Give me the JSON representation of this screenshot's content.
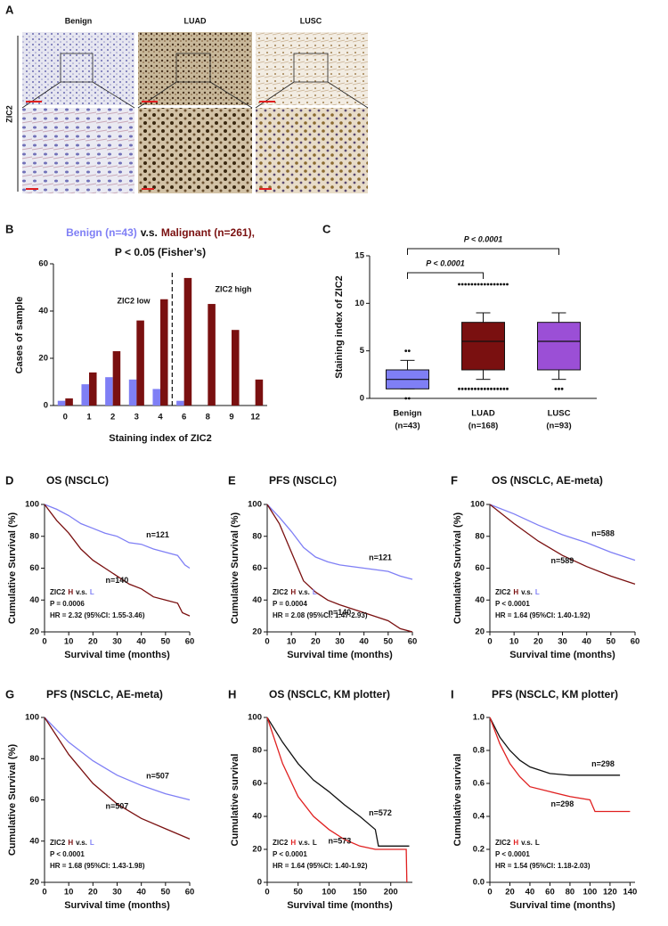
{
  "panel_a": {
    "label": "A",
    "columns": [
      "Benign",
      "LUAD",
      "LUSC"
    ],
    "row_label": "ZIC2"
  },
  "chart_data": [
    {
      "panel": "B",
      "type": "bar",
      "title_parts": [
        "Benign (n=43)",
        "v.s.",
        "Malignant (n=261),"
      ],
      "subtitle": "P < 0.05 (Fisher’s)",
      "categories": [
        "0",
        "1",
        "2",
        "3",
        "4",
        "6",
        "8",
        "9",
        "12"
      ],
      "series": [
        {
          "name": "Benign",
          "color": "#7f7ff5",
          "values": [
            2,
            9,
            12,
            11,
            7,
            2,
            0,
            0,
            0
          ]
        },
        {
          "name": "Malignant",
          "color": "#7a1010",
          "values": [
            3,
            14,
            23,
            36,
            45,
            54,
            43,
            32,
            11
          ]
        }
      ],
      "ylim": [
        0,
        60
      ],
      "yticks": [
        0,
        20,
        40,
        60
      ],
      "xlabel": "Staining index of ZIC2",
      "ylabel": "Cases of sample",
      "annotations": [
        "ZIC2 low",
        "ZIC2 high"
      ]
    },
    {
      "panel": "C",
      "type": "box",
      "categories": [
        "Benign",
        "LUAD",
        "LUSC"
      ],
      "category_counts": [
        "(n=43)",
        "(n=168)",
        "(n=93)"
      ],
      "boxes": [
        {
          "color": "#7f7ff5",
          "whisker_low": 1,
          "q1": 1,
          "median": 2,
          "q3": 3,
          "whisker_high": 4,
          "outliers": [
            0,
            0,
            5,
            5
          ]
        },
        {
          "color": "#7a1010",
          "whisker_low": 2,
          "q1": 3,
          "median": 6,
          "q3": 8,
          "whisker_high": 9,
          "outliers": [
            1,
            1,
            1,
            1,
            1,
            1,
            1,
            1,
            1,
            1,
            1,
            1,
            1,
            1,
            1,
            1,
            12,
            12,
            12,
            12,
            12,
            12,
            12,
            12,
            12,
            12,
            12,
            12,
            12,
            12,
            12,
            12
          ]
        },
        {
          "color": "#9b4fd6",
          "whisker_low": 2,
          "q1": 3,
          "median": 6,
          "q3": 8,
          "whisker_high": 9,
          "outliers": [
            1,
            1,
            1
          ]
        }
      ],
      "ylim": [
        0,
        15
      ],
      "yticks": [
        0,
        5,
        10,
        15
      ],
      "ylabel": "Staining index of ZIC2",
      "annotations": [
        "P < 0.0001",
        "P < 0.0001"
      ]
    },
    {
      "panel": "D",
      "type": "survival",
      "title": "OS (NSCLC)",
      "xlabel": "Survival time (months)",
      "ylabel": "Cumulative Survival (%)",
      "xlim": [
        0,
        60
      ],
      "xticks": [
        0,
        10,
        20,
        30,
        40,
        50,
        60
      ],
      "ylim": [
        20,
        100
      ],
      "yticks": [
        20,
        40,
        60,
        80,
        100
      ],
      "series": [
        {
          "name": "n=121",
          "color": "#7f7ff5",
          "x": [
            0,
            5,
            10,
            15,
            20,
            25,
            30,
            35,
            40,
            45,
            50,
            55,
            58,
            60
          ],
          "values": [
            100,
            97,
            93,
            88,
            85,
            82,
            80,
            76,
            75,
            72,
            70,
            68,
            62,
            60
          ]
        },
        {
          "name": "n=140",
          "color": "#7a1010",
          "x": [
            0,
            5,
            10,
            15,
            20,
            25,
            30,
            35,
            40,
            45,
            50,
            55,
            57,
            60
          ],
          "values": [
            100,
            90,
            82,
            72,
            65,
            60,
            55,
            50,
            47,
            42,
            40,
            38,
            32,
            30
          ]
        }
      ],
      "annotation": {
        "parts": [
          "ZIC2",
          "H",
          "v.s.",
          "L"
        ],
        "p": "P = 0.0006",
        "hr": "HR = 2.32 (95%CI: 1.55-3.46)"
      }
    },
    {
      "panel": "E",
      "type": "survival",
      "title": "PFS (NSCLC)",
      "xlabel": "Survival time (months)",
      "ylabel": "Cumulative Survival (%)",
      "xlim": [
        0,
        60
      ],
      "xticks": [
        0,
        10,
        20,
        30,
        40,
        50,
        60
      ],
      "ylim": [
        20,
        100
      ],
      "yticks": [
        20,
        40,
        60,
        80,
        100
      ],
      "series": [
        {
          "name": "n=121",
          "color": "#7f7ff5",
          "x": [
            0,
            5,
            10,
            15,
            20,
            25,
            30,
            40,
            50,
            55,
            60
          ],
          "values": [
            100,
            92,
            83,
            73,
            67,
            64,
            62,
            60,
            58,
            55,
            53
          ]
        },
        {
          "name": "n=140",
          "color": "#7a1010",
          "x": [
            0,
            5,
            10,
            15,
            20,
            25,
            30,
            40,
            50,
            55,
            60
          ],
          "values": [
            100,
            88,
            70,
            52,
            45,
            40,
            37,
            32,
            27,
            22,
            20
          ]
        }
      ],
      "annotation": {
        "parts": [
          "ZIC2",
          "H",
          "v.s.",
          "L"
        ],
        "p": "P = 0.0004",
        "hr": "HR = 2.08 (95%CI: 1.47-2.93)"
      }
    },
    {
      "panel": "F",
      "type": "survival",
      "title": "OS (NSCLC, AE-meta)",
      "xlabel": "Survival time (months)",
      "ylabel": "Cumulative Survival (%)",
      "xlim": [
        0,
        60
      ],
      "xticks": [
        0,
        10,
        20,
        30,
        40,
        50,
        60
      ],
      "ylim": [
        20,
        100
      ],
      "yticks": [
        20,
        40,
        60,
        80,
        100
      ],
      "series": [
        {
          "name": "n=588",
          "color": "#7f7ff5",
          "x": [
            0,
            10,
            20,
            30,
            40,
            50,
            60
          ],
          "values": [
            100,
            94,
            87,
            81,
            76,
            70,
            65
          ]
        },
        {
          "name": "n=589",
          "color": "#7a1010",
          "x": [
            0,
            10,
            20,
            30,
            40,
            50,
            60
          ],
          "values": [
            100,
            88,
            77,
            68,
            61,
            55,
            50
          ]
        }
      ],
      "annotation": {
        "parts": [
          "ZIC2",
          "H",
          "v.s.",
          "L"
        ],
        "p": "P < 0.0001",
        "hr": "HR = 1.64 (95%CI: 1.40-1.92)"
      }
    },
    {
      "panel": "G",
      "type": "survival",
      "title": "PFS (NSCLC, AE-meta)",
      "xlabel": "Survival time (months)",
      "ylabel": "Cumulative Survival (%)",
      "xlim": [
        0,
        60
      ],
      "xticks": [
        0,
        10,
        20,
        30,
        40,
        50,
        60
      ],
      "ylim": [
        20,
        100
      ],
      "yticks": [
        20,
        40,
        60,
        80,
        100
      ],
      "series": [
        {
          "name": "n=507",
          "color": "#7f7ff5",
          "x": [
            0,
            10,
            20,
            30,
            40,
            50,
            60
          ],
          "values": [
            100,
            88,
            79,
            72,
            67,
            63,
            60
          ]
        },
        {
          "name": "n=507",
          "color": "#7a1010",
          "x": [
            0,
            10,
            20,
            30,
            40,
            50,
            60
          ],
          "values": [
            100,
            82,
            68,
            58,
            51,
            46,
            41
          ]
        }
      ],
      "annotation": {
        "parts": [
          "ZIC2",
          "H",
          "v.s.",
          "L"
        ],
        "p": "P < 0.0001",
        "hr": "HR = 1.68 (95%CI: 1.43-1.98)"
      }
    },
    {
      "panel": "H",
      "type": "survival",
      "title": "OS (NSCLC, KM plotter)",
      "xlabel": "Survival time (months)",
      "ylabel": "Cumulative survival",
      "xlim": [
        0,
        235
      ],
      "xticks": [
        0,
        50,
        100,
        150,
        200
      ],
      "ylim": [
        0,
        100
      ],
      "yticks": [
        0,
        20,
        40,
        60,
        80,
        100
      ],
      "series": [
        {
          "name": "n=572",
          "color": "#111111",
          "x": [
            0,
            25,
            50,
            75,
            100,
            125,
            150,
            175,
            180,
            230
          ],
          "values": [
            100,
            85,
            72,
            62,
            55,
            47,
            40,
            32,
            22,
            22
          ]
        },
        {
          "name": "n=573",
          "color": "#e02020",
          "x": [
            0,
            25,
            50,
            75,
            100,
            125,
            150,
            175,
            200,
            225,
            226
          ],
          "values": [
            100,
            72,
            52,
            40,
            32,
            26,
            22,
            20,
            20,
            20,
            0
          ]
        }
      ],
      "annotation": {
        "parts": [
          "ZIC2",
          "H",
          "v.s.",
          "L"
        ],
        "p": "P < 0.0001",
        "hr": "HR = 1.64 (95%CI: 1.40-1.92)"
      }
    },
    {
      "panel": "I",
      "type": "survival",
      "title": "PFS (NSCLC, KM plotter)",
      "xlabel": "Survival time (months)",
      "ylabel": "Cumulative survival",
      "xlim": [
        0,
        145
      ],
      "xticks": [
        0,
        20,
        40,
        60,
        80,
        100,
        120,
        140
      ],
      "ylim": [
        0,
        1
      ],
      "yticks": [
        {
          "value": 0,
          "label": "0.0"
        },
        0.2,
        0.4,
        0.6,
        0.8,
        {
          "value": 1,
          "label": "1.0"
        }
      ],
      "series": [
        {
          "name": "n=298",
          "color": "#111111",
          "x": [
            0,
            10,
            20,
            30,
            40,
            60,
            80,
            100,
            130
          ],
          "values": [
            1,
            0.88,
            0.8,
            0.74,
            0.7,
            0.66,
            0.65,
            0.65,
            0.65
          ]
        },
        {
          "name": "n=298",
          "color": "#e02020",
          "x": [
            0,
            10,
            20,
            30,
            40,
            60,
            80,
            100,
            105,
            140
          ],
          "values": [
            1,
            0.84,
            0.72,
            0.64,
            0.58,
            0.55,
            0.52,
            0.5,
            0.43,
            0.43
          ]
        }
      ],
      "annotation": {
        "parts": [
          "ZIC2",
          "H",
          "v.s.",
          "L"
        ],
        "p": "P < 0.0001",
        "hr": "HR = 1.54 (95%CI: 1.18-2.03)"
      }
    }
  ]
}
